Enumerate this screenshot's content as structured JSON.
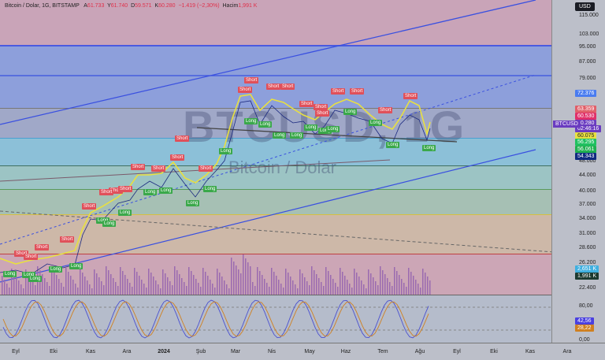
{
  "legend": {
    "symbol": "Bitcoin / Dolar, 1G, BITSTAMP",
    "o_label": "A",
    "o": "61.733",
    "h_label": "Y",
    "h": "61.740",
    "l_label": "D",
    "l": "59.571",
    "c_label": "K",
    "c": "60.280",
    "change": "−1.419 (−2,30%)",
    "vol_label": "Hacim",
    "vol": "1,991 K"
  },
  "watermark": {
    "ticker": "BTCUSD, 1G",
    "name": "Bitcoin / Dolar"
  },
  "currency": "USD",
  "price_ticks": [
    "115.000",
    "103.000",
    "95.000",
    "87.000",
    "79.000",
    "48.000",
    "44.000",
    "40.000",
    "37.000",
    "34.000",
    "31.000",
    "28.600",
    "26.200",
    "22.400"
  ],
  "price_tags": [
    {
      "text": "72.376",
      "color": "#4a7cf0"
    },
    {
      "text": "63.359",
      "color": "#e0606a"
    },
    {
      "text": "60.530",
      "color": "#e0306a"
    },
    {
      "text": "60.280",
      "color": "#6a3cc0"
    },
    {
      "text": "02:46:16",
      "color": "#6a3cc0"
    },
    {
      "text": "60.075",
      "color": "#e8e040"
    },
    {
      "text": "56.295",
      "color": "#20c060"
    },
    {
      "text": "56.061",
      "color": "#20b050"
    },
    {
      "text": "54.343",
      "color": "#102a80"
    },
    {
      "text": "2,651 K",
      "color": "#40b0e0"
    },
    {
      "text": "1,991 K",
      "color": "#1c3a30"
    }
  ],
  "symbol_tag": "BTCUSD",
  "osc_ticks": [
    "80,00",
    "0,00"
  ],
  "osc_tags": [
    {
      "text": "42,56",
      "color": "#4a40e0"
    },
    {
      "text": "28,22",
      "color": "#d08020"
    }
  ],
  "x_labels": [
    "Eyl",
    "Eki",
    "Kas",
    "Ara",
    "2024",
    "Şub",
    "Mar",
    "Nis",
    "May",
    "Haz",
    "Tem",
    "Ağu",
    "Eyl",
    "Eki",
    "Kas",
    "Ara"
  ],
  "signals": {
    "long": "Long",
    "short": "Short"
  },
  "colors": {
    "up_channel": "#3a50e0",
    "signal_short": "#e0505a",
    "signal_long": "#3aa84a"
  }
}
